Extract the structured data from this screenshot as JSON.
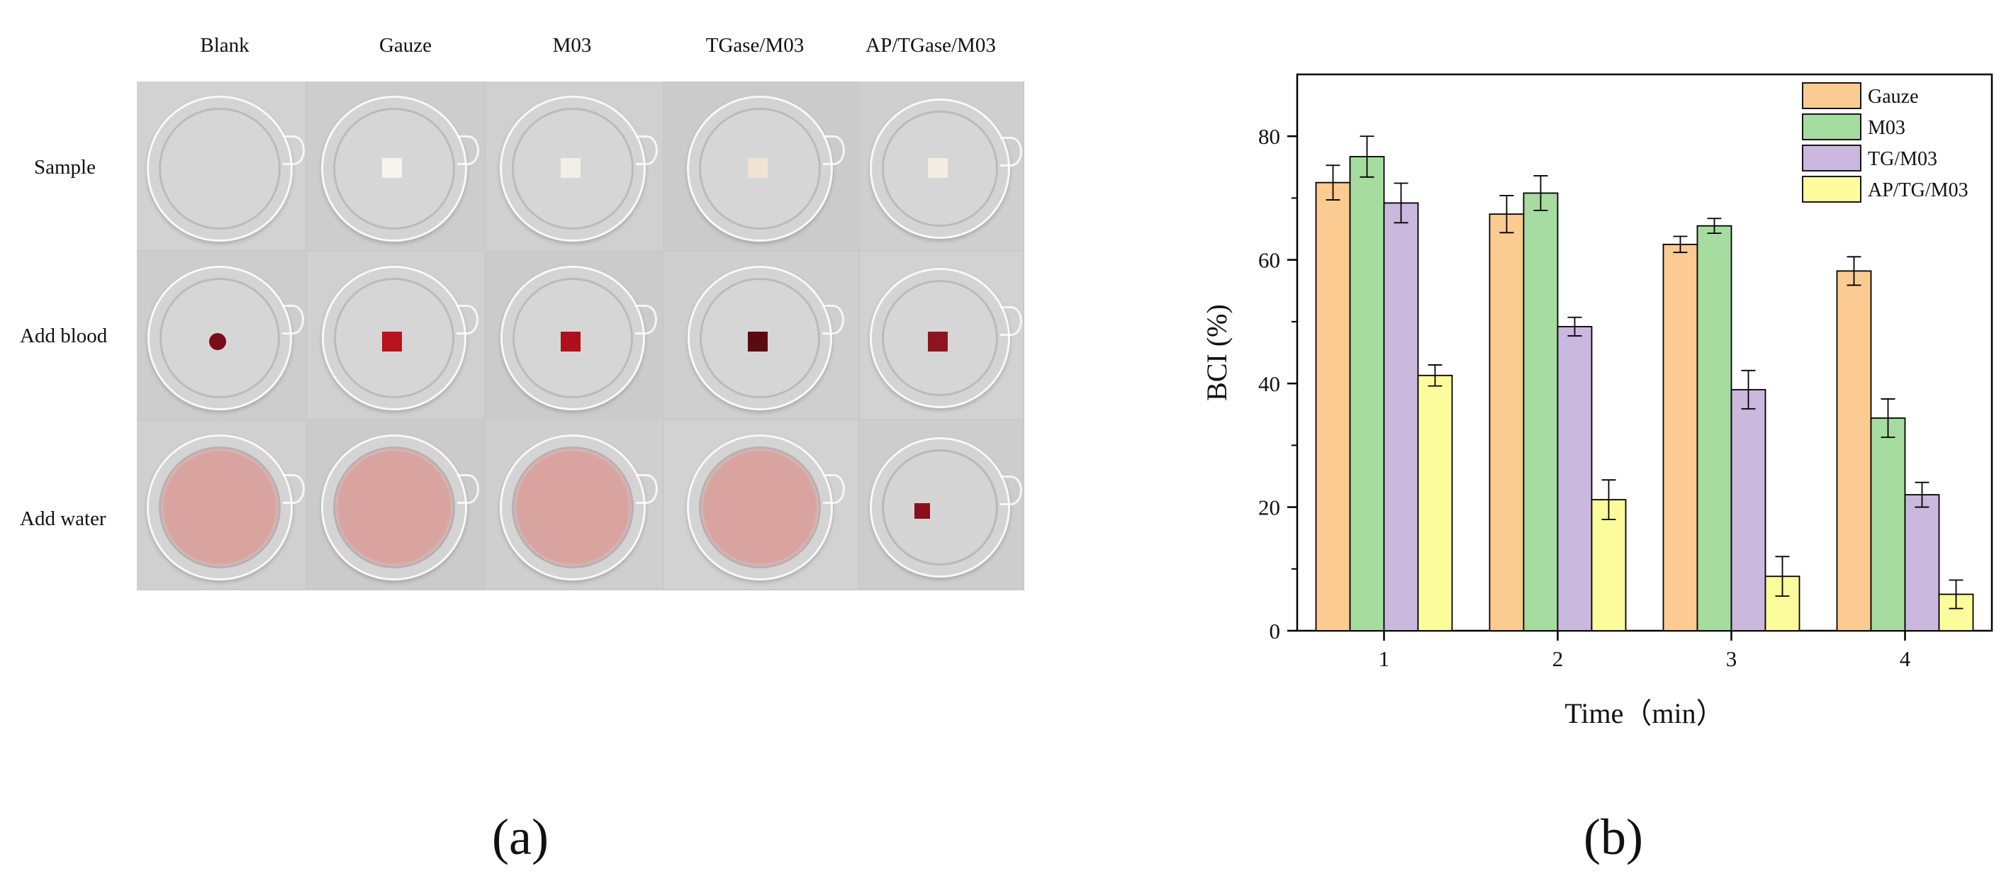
{
  "figure_a": {
    "columns": [
      "Blank",
      "Gauze",
      "M03",
      "TGase/M03",
      "AP/TGase/M03"
    ],
    "rows": [
      "Sample",
      "Add blood",
      "Add water"
    ],
    "panel_label": "(a)"
  },
  "figure_b": {
    "panel_label": "(b)"
  },
  "colors": {
    "gauze": "#fccb92",
    "m03": "#a6dc9f",
    "tg_m03": "#cab8df",
    "ap_tg_m03": "#fdfc9c",
    "blood": "#8a0f1b",
    "diluted_blood": "#d9a3a0"
  },
  "chart_data": {
    "type": "bar",
    "categories": [
      "1",
      "2",
      "3",
      "4"
    ],
    "series": [
      {
        "name": "Gauze",
        "values": [
          72.5,
          67.4,
          62.5,
          58.2
        ],
        "errors": [
          2.8,
          3.0,
          1.3,
          2.3
        ]
      },
      {
        "name": "M03",
        "values": [
          76.7,
          70.8,
          65.5,
          34.4
        ],
        "errors": [
          3.3,
          2.8,
          1.2,
          3.1
        ]
      },
      {
        "name": "TG/M03",
        "values": [
          69.2,
          49.2,
          39.0,
          22.0
        ],
        "errors": [
          3.2,
          1.5,
          3.1,
          2.0
        ]
      },
      {
        "name": "AP/TG/M03",
        "values": [
          41.3,
          21.2,
          8.8,
          5.9
        ],
        "errors": [
          1.7,
          3.2,
          3.2,
          2.3
        ]
      }
    ],
    "title": "",
    "xlabel": "Time（min）",
    "ylabel": "BCI (%)",
    "ylim": [
      0,
      90
    ],
    "yticks": [
      0,
      20,
      40,
      60,
      80
    ],
    "legend_position": "top-right",
    "grid": false
  }
}
